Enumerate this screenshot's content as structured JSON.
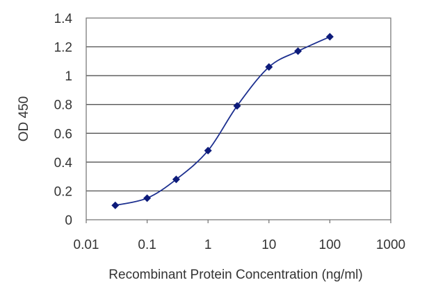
{
  "chart_data": {
    "type": "line",
    "x_scale": "log",
    "xlabel": "Recombinant Protein Concentration (ng/ml)",
    "ylabel": "OD 450",
    "xlim": [
      0.01,
      1000
    ],
    "ylim": [
      0,
      1.4
    ],
    "x_ticks": [
      "0.01",
      "0.1",
      "1",
      "10",
      "100",
      "1000"
    ],
    "y_ticks": [
      "0",
      "0.2",
      "0.4",
      "0.6",
      "0.8",
      "1",
      "1.2",
      "1.4"
    ],
    "grid": "horizontal",
    "series": [
      {
        "x": [
          0.03,
          0.1,
          0.3,
          1,
          3,
          10,
          30,
          100
        ],
        "y": [
          0.1,
          0.15,
          0.28,
          0.48,
          0.79,
          1.06,
          1.17,
          1.27
        ]
      }
    ],
    "colors": {
      "line": "#1c2f8f",
      "marker": "#0d1b7a",
      "grid": "#404040"
    }
  }
}
